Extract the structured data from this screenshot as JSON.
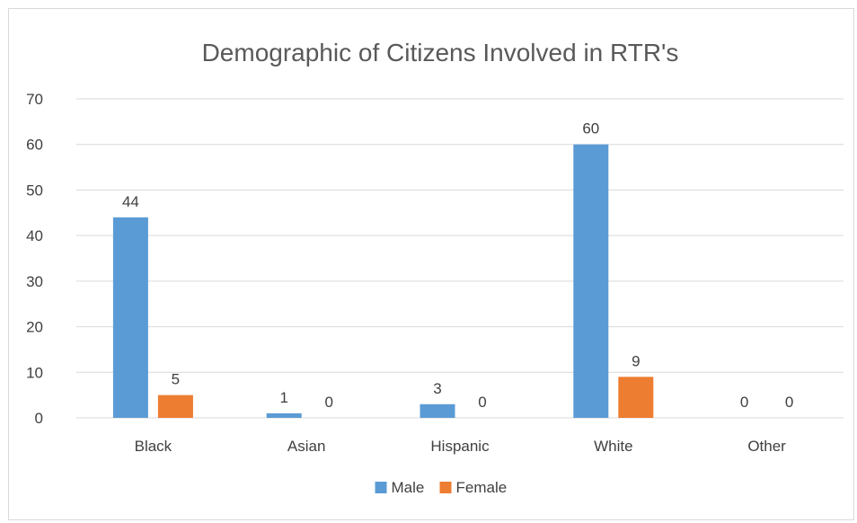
{
  "colors": {
    "male": "#5b9bd5",
    "female": "#ed7d31",
    "gridline": "#d9d9d9",
    "text": "#404040",
    "title": "#595959"
  },
  "chart_data": {
    "type": "bar",
    "title": "Demographic of Citizens Involved in RTR's",
    "xlabel": "",
    "ylabel": "",
    "categories": [
      "Black",
      "Asian",
      "Hispanic",
      "White",
      "Other"
    ],
    "series": [
      {
        "name": "Male",
        "values": [
          44,
          1,
          3,
          60,
          0
        ]
      },
      {
        "name": "Female",
        "values": [
          5,
          0,
          0,
          9,
          0
        ]
      }
    ],
    "ylim": [
      0,
      70
    ],
    "yticks": [
      0,
      10,
      20,
      30,
      40,
      50,
      60,
      70
    ],
    "grid": true,
    "legend": "bottom",
    "data_labels": true
  }
}
